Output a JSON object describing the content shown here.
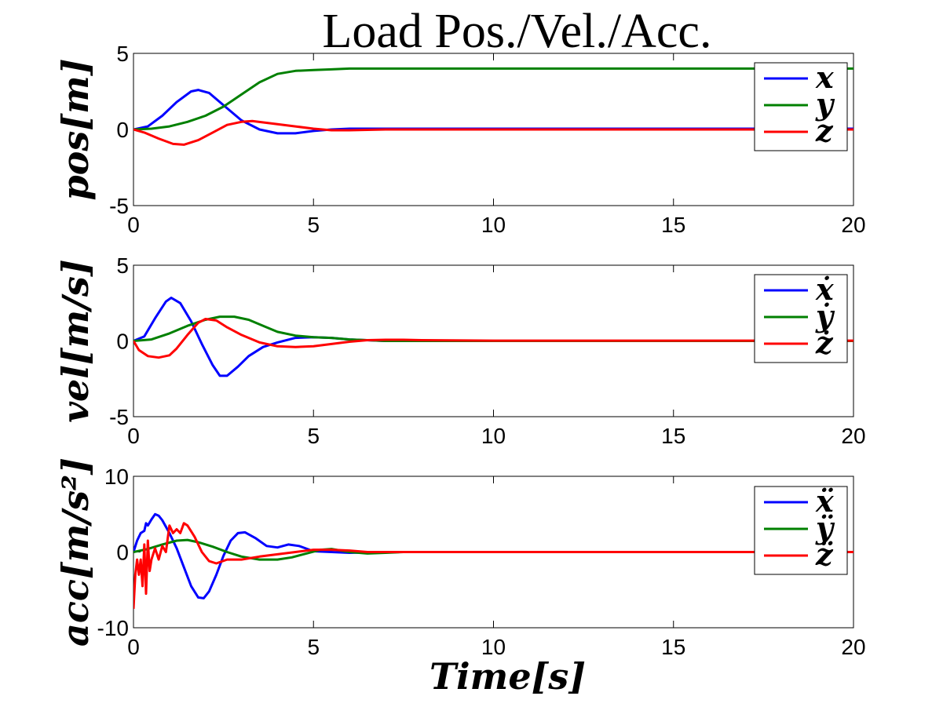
{
  "chart_data": [
    {
      "type": "line",
      "title": "Load Pos./Vel./Acc.",
      "ylabel": "pos[m]",
      "xlabel": "",
      "xlim": [
        0,
        20
      ],
      "ylim": [
        -5,
        5
      ],
      "xticks": [
        "0",
        "5",
        "10",
        "15",
        "20"
      ],
      "yticks": [
        "-5",
        "0",
        "5"
      ],
      "legend_position": "top-right",
      "series": [
        {
          "name": "x",
          "color": "#0000ff",
          "points": [
            [
              0,
              0
            ],
            [
              0.4,
              0.2
            ],
            [
              0.8,
              0.9
            ],
            [
              1.2,
              1.8
            ],
            [
              1.6,
              2.5
            ],
            [
              1.8,
              2.6
            ],
            [
              2.1,
              2.4
            ],
            [
              2.5,
              1.6
            ],
            [
              3,
              0.6
            ],
            [
              3.5,
              0.0
            ],
            [
              4,
              -0.25
            ],
            [
              4.5,
              -0.25
            ],
            [
              5,
              -0.1
            ],
            [
              5.5,
              0.0
            ],
            [
              6,
              0.05
            ],
            [
              7,
              0.05
            ],
            [
              8,
              0.05
            ],
            [
              10,
              0.05
            ],
            [
              15,
              0.05
            ],
            [
              20,
              0.05
            ]
          ]
        },
        {
          "name": "y",
          "color": "#008000",
          "points": [
            [
              0,
              0
            ],
            [
              0.5,
              0.05
            ],
            [
              1,
              0.2
            ],
            [
              1.5,
              0.5
            ],
            [
              2,
              0.9
            ],
            [
              2.5,
              1.5
            ],
            [
              3,
              2.3
            ],
            [
              3.5,
              3.1
            ],
            [
              4,
              3.65
            ],
            [
              4.5,
              3.85
            ],
            [
              5,
              3.9
            ],
            [
              5.5,
              3.95
            ],
            [
              6,
              4.0
            ],
            [
              7,
              4.0
            ],
            [
              8,
              4.0
            ],
            [
              10,
              4.0
            ],
            [
              15,
              4.0
            ],
            [
              20,
              4.0
            ]
          ]
        },
        {
          "name": "z",
          "color": "#ff0000",
          "points": [
            [
              0,
              0
            ],
            [
              0.3,
              -0.2
            ],
            [
              0.7,
              -0.6
            ],
            [
              1.1,
              -0.95
            ],
            [
              1.4,
              -1.0
            ],
            [
              1.8,
              -0.7
            ],
            [
              2.2,
              -0.2
            ],
            [
              2.6,
              0.3
            ],
            [
              3,
              0.5
            ],
            [
              3.3,
              0.55
            ],
            [
              4,
              0.35
            ],
            [
              4.5,
              0.2
            ],
            [
              5,
              0.05
            ],
            [
              5.5,
              -0.05
            ],
            [
              6,
              -0.05
            ],
            [
              7,
              0.0
            ],
            [
              10,
              0.0
            ],
            [
              15,
              0.0
            ],
            [
              20,
              0.0
            ]
          ]
        }
      ]
    },
    {
      "type": "line",
      "title": "",
      "ylabel": "vel[m/s]",
      "xlabel": "",
      "xlim": [
        0,
        20
      ],
      "ylim": [
        -5,
        5
      ],
      "xticks": [
        "0",
        "5",
        "10",
        "15",
        "20"
      ],
      "yticks": [
        "-5",
        "0",
        "5"
      ],
      "legend_position": "top-right",
      "series": [
        {
          "name": "ẋ",
          "color": "#0000ff",
          "points": [
            [
              0,
              0
            ],
            [
              0.3,
              0.3
            ],
            [
              0.6,
              1.5
            ],
            [
              0.9,
              2.6
            ],
            [
              1.05,
              2.85
            ],
            [
              1.3,
              2.5
            ],
            [
              1.6,
              1.3
            ],
            [
              1.9,
              -0.2
            ],
            [
              2.2,
              -1.6
            ],
            [
              2.4,
              -2.3
            ],
            [
              2.6,
              -2.3
            ],
            [
              2.9,
              -1.7
            ],
            [
              3.2,
              -1.0
            ],
            [
              3.6,
              -0.4
            ],
            [
              4,
              -0.1
            ],
            [
              4.5,
              0.2
            ],
            [
              5,
              0.25
            ],
            [
              5.5,
              0.2
            ],
            [
              6,
              0.1
            ],
            [
              7,
              0.0
            ],
            [
              10,
              0.0
            ],
            [
              15,
              0.0
            ],
            [
              20,
              0.0
            ]
          ]
        },
        {
          "name": "ẏ",
          "color": "#008000",
          "points": [
            [
              0,
              0
            ],
            [
              0.5,
              0.1
            ],
            [
              1,
              0.5
            ],
            [
              1.5,
              1.0
            ],
            [
              2,
              1.4
            ],
            [
              2.4,
              1.6
            ],
            [
              2.8,
              1.6
            ],
            [
              3.2,
              1.4
            ],
            [
              3.6,
              1.0
            ],
            [
              4,
              0.6
            ],
            [
              4.5,
              0.35
            ],
            [
              5,
              0.25
            ],
            [
              5.5,
              0.2
            ],
            [
              6,
              0.1
            ],
            [
              6.5,
              0.05
            ],
            [
              7,
              0.0
            ],
            [
              10,
              0.0
            ],
            [
              15,
              0.0
            ],
            [
              20,
              0.0
            ]
          ]
        },
        {
          "name": "ż",
          "color": "#ff0000",
          "points": [
            [
              0,
              0
            ],
            [
              0.15,
              -0.6
            ],
            [
              0.4,
              -1.0
            ],
            [
              0.7,
              -1.1
            ],
            [
              1,
              -0.95
            ],
            [
              1.2,
              -0.5
            ],
            [
              1.5,
              0.4
            ],
            [
              1.8,
              1.2
            ],
            [
              2.0,
              1.45
            ],
            [
              2.3,
              1.35
            ],
            [
              2.6,
              0.9
            ],
            [
              3,
              0.4
            ],
            [
              3.5,
              -0.1
            ],
            [
              4,
              -0.35
            ],
            [
              4.5,
              -0.4
            ],
            [
              5,
              -0.35
            ],
            [
              5.5,
              -0.2
            ],
            [
              6,
              -0.05
            ],
            [
              6.5,
              0.05
            ],
            [
              7,
              0.08
            ],
            [
              7.5,
              0.08
            ],
            [
              8,
              0.05
            ],
            [
              10,
              0.02
            ],
            [
              15,
              0.02
            ],
            [
              20,
              0.02
            ]
          ]
        }
      ]
    },
    {
      "type": "line",
      "title": "",
      "ylabel": "acc[m/s²]",
      "xlabel": "Time[s]",
      "xlim": [
        0,
        20
      ],
      "ylim": [
        -10,
        10
      ],
      "xticks": [
        "0",
        "5",
        "10",
        "15",
        "20"
      ],
      "yticks": [
        "-10",
        "0",
        "10"
      ],
      "legend_position": "top-right",
      "series": [
        {
          "name": "ẍ",
          "color": "#0000ff",
          "points": [
            [
              0,
              0
            ],
            [
              0.1,
              1.5
            ],
            [
              0.2,
              2.5
            ],
            [
              0.3,
              2.8
            ],
            [
              0.35,
              3.8
            ],
            [
              0.4,
              3.5
            ],
            [
              0.5,
              4.3
            ],
            [
              0.6,
              5.0
            ],
            [
              0.7,
              4.8
            ],
            [
              0.8,
              4.2
            ],
            [
              1.0,
              2.5
            ],
            [
              1.2,
              0.5
            ],
            [
              1.4,
              -2.0
            ],
            [
              1.6,
              -4.5
            ],
            [
              1.8,
              -6.0
            ],
            [
              1.95,
              -6.1
            ],
            [
              2.1,
              -5.2
            ],
            [
              2.3,
              -3.0
            ],
            [
              2.5,
              -0.5
            ],
            [
              2.7,
              1.5
            ],
            [
              2.9,
              2.5
            ],
            [
              3.1,
              2.6
            ],
            [
              3.4,
              1.8
            ],
            [
              3.7,
              0.8
            ],
            [
              4.0,
              0.6
            ],
            [
              4.3,
              1.0
            ],
            [
              4.6,
              0.8
            ],
            [
              5,
              0.1
            ],
            [
              5.5,
              0.0
            ],
            [
              6,
              -0.1
            ],
            [
              7,
              0.0
            ],
            [
              10,
              0.0
            ],
            [
              15,
              0.0
            ],
            [
              20,
              0.0
            ]
          ]
        },
        {
          "name": "ÿ",
          "color": "#008000",
          "points": [
            [
              0,
              0
            ],
            [
              0.4,
              0.4
            ],
            [
              0.8,
              1.0
            ],
            [
              1.2,
              1.5
            ],
            [
              1.5,
              1.6
            ],
            [
              1.8,
              1.3
            ],
            [
              2.2,
              0.7
            ],
            [
              2.6,
              0.0
            ],
            [
              3,
              -0.6
            ],
            [
              3.5,
              -1.0
            ],
            [
              4,
              -1.0
            ],
            [
              4.4,
              -0.7
            ],
            [
              4.8,
              -0.2
            ],
            [
              5.2,
              0.3
            ],
            [
              5.5,
              0.4
            ],
            [
              6,
              0.0
            ],
            [
              6.5,
              -0.2
            ],
            [
              7,
              -0.1
            ],
            [
              7.5,
              0.0
            ],
            [
              10,
              0.0
            ],
            [
              15,
              0.0
            ],
            [
              20,
              0.0
            ]
          ]
        },
        {
          "name": "z̈",
          "color": "#ff0000",
          "points": [
            [
              0,
              -7.5
            ],
            [
              0.05,
              -3.0
            ],
            [
              0.1,
              -1.0
            ],
            [
              0.15,
              -3.0
            ],
            [
              0.2,
              -1.0
            ],
            [
              0.25,
              -4.5
            ],
            [
              0.3,
              1.0
            ],
            [
              0.35,
              -5.5
            ],
            [
              0.4,
              1.5
            ],
            [
              0.45,
              -2.5
            ],
            [
              0.5,
              -1.0
            ],
            [
              0.6,
              0.5
            ],
            [
              0.7,
              -1.0
            ],
            [
              0.8,
              0.8
            ],
            [
              0.9,
              0.0
            ],
            [
              1.0,
              3.5
            ],
            [
              1.1,
              2.5
            ],
            [
              1.2,
              3.0
            ],
            [
              1.3,
              2.5
            ],
            [
              1.4,
              3.8
            ],
            [
              1.5,
              3.5
            ],
            [
              1.7,
              2.0
            ],
            [
              1.9,
              0.0
            ],
            [
              2.1,
              -1.2
            ],
            [
              2.3,
              -1.5
            ],
            [
              2.6,
              -1.0
            ],
            [
              3,
              -1.0
            ],
            [
              3.5,
              -0.6
            ],
            [
              4,
              -0.3
            ],
            [
              4.5,
              0.0
            ],
            [
              5,
              0.3
            ],
            [
              5.5,
              0.3
            ],
            [
              6,
              0.2
            ],
            [
              6.5,
              0.0
            ],
            [
              7,
              0.0
            ],
            [
              10,
              0.0
            ],
            [
              15,
              0.0
            ],
            [
              20,
              0.0
            ]
          ]
        }
      ]
    }
  ]
}
